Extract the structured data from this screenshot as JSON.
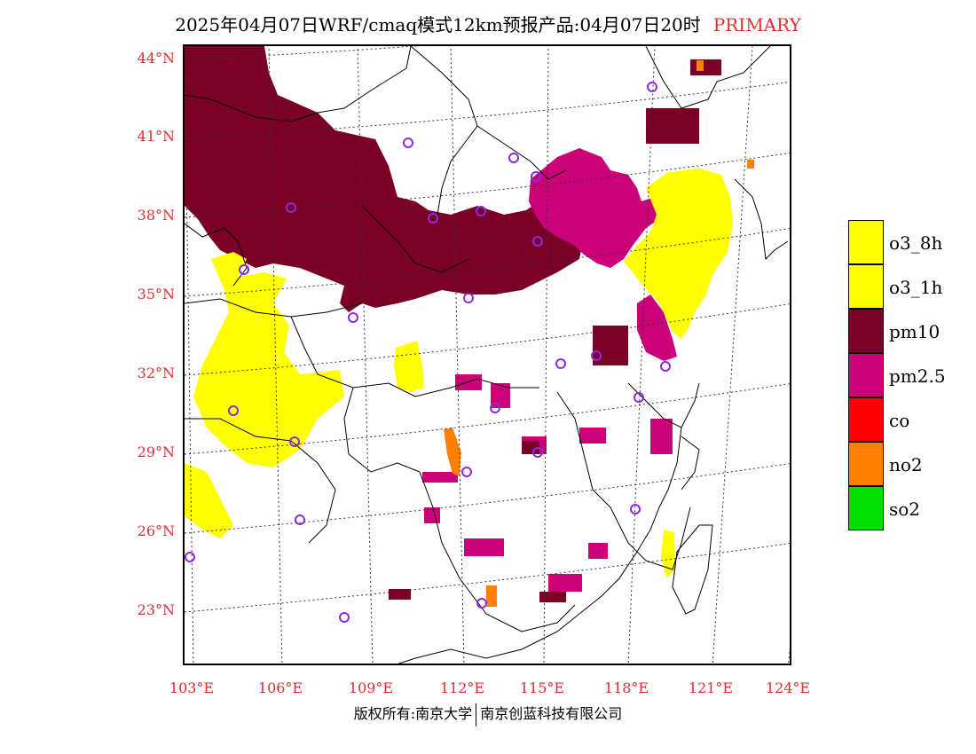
{
  "title": {
    "main": "2025年04月07日WRF/cmaq模式12km预报产品:04月07日20时",
    "tag": "PRIMARY"
  },
  "lat_labels": [
    "44°N",
    "41°N",
    "38°N",
    "35°N",
    "32°N",
    "29°N",
    "26°N",
    "23°N"
  ],
  "lon_labels": [
    "103°E",
    "106°E",
    "109°E",
    "112°E",
    "115°E",
    "118°E",
    "121°E",
    "124°E"
  ],
  "legend": [
    {
      "label": "o3_8h",
      "color": "#ffff00"
    },
    {
      "label": "o3_1h",
      "color": "#ffff00"
    },
    {
      "label": "pm10",
      "color": "#7a0026"
    },
    {
      "label": "pm2.5",
      "color": "#cc0077"
    },
    {
      "label": "co",
      "color": "#ff0000"
    },
    {
      "label": "no2",
      "color": "#ff8000"
    },
    {
      "label": "so2",
      "color": "#00dd00"
    }
  ],
  "footer": {
    "left": "版权所有:南京大学",
    "right": "南京创蓝科技有限公司"
  },
  "colors": {
    "axis_text": "#e03030",
    "station_marker": "#8a2be2"
  }
}
